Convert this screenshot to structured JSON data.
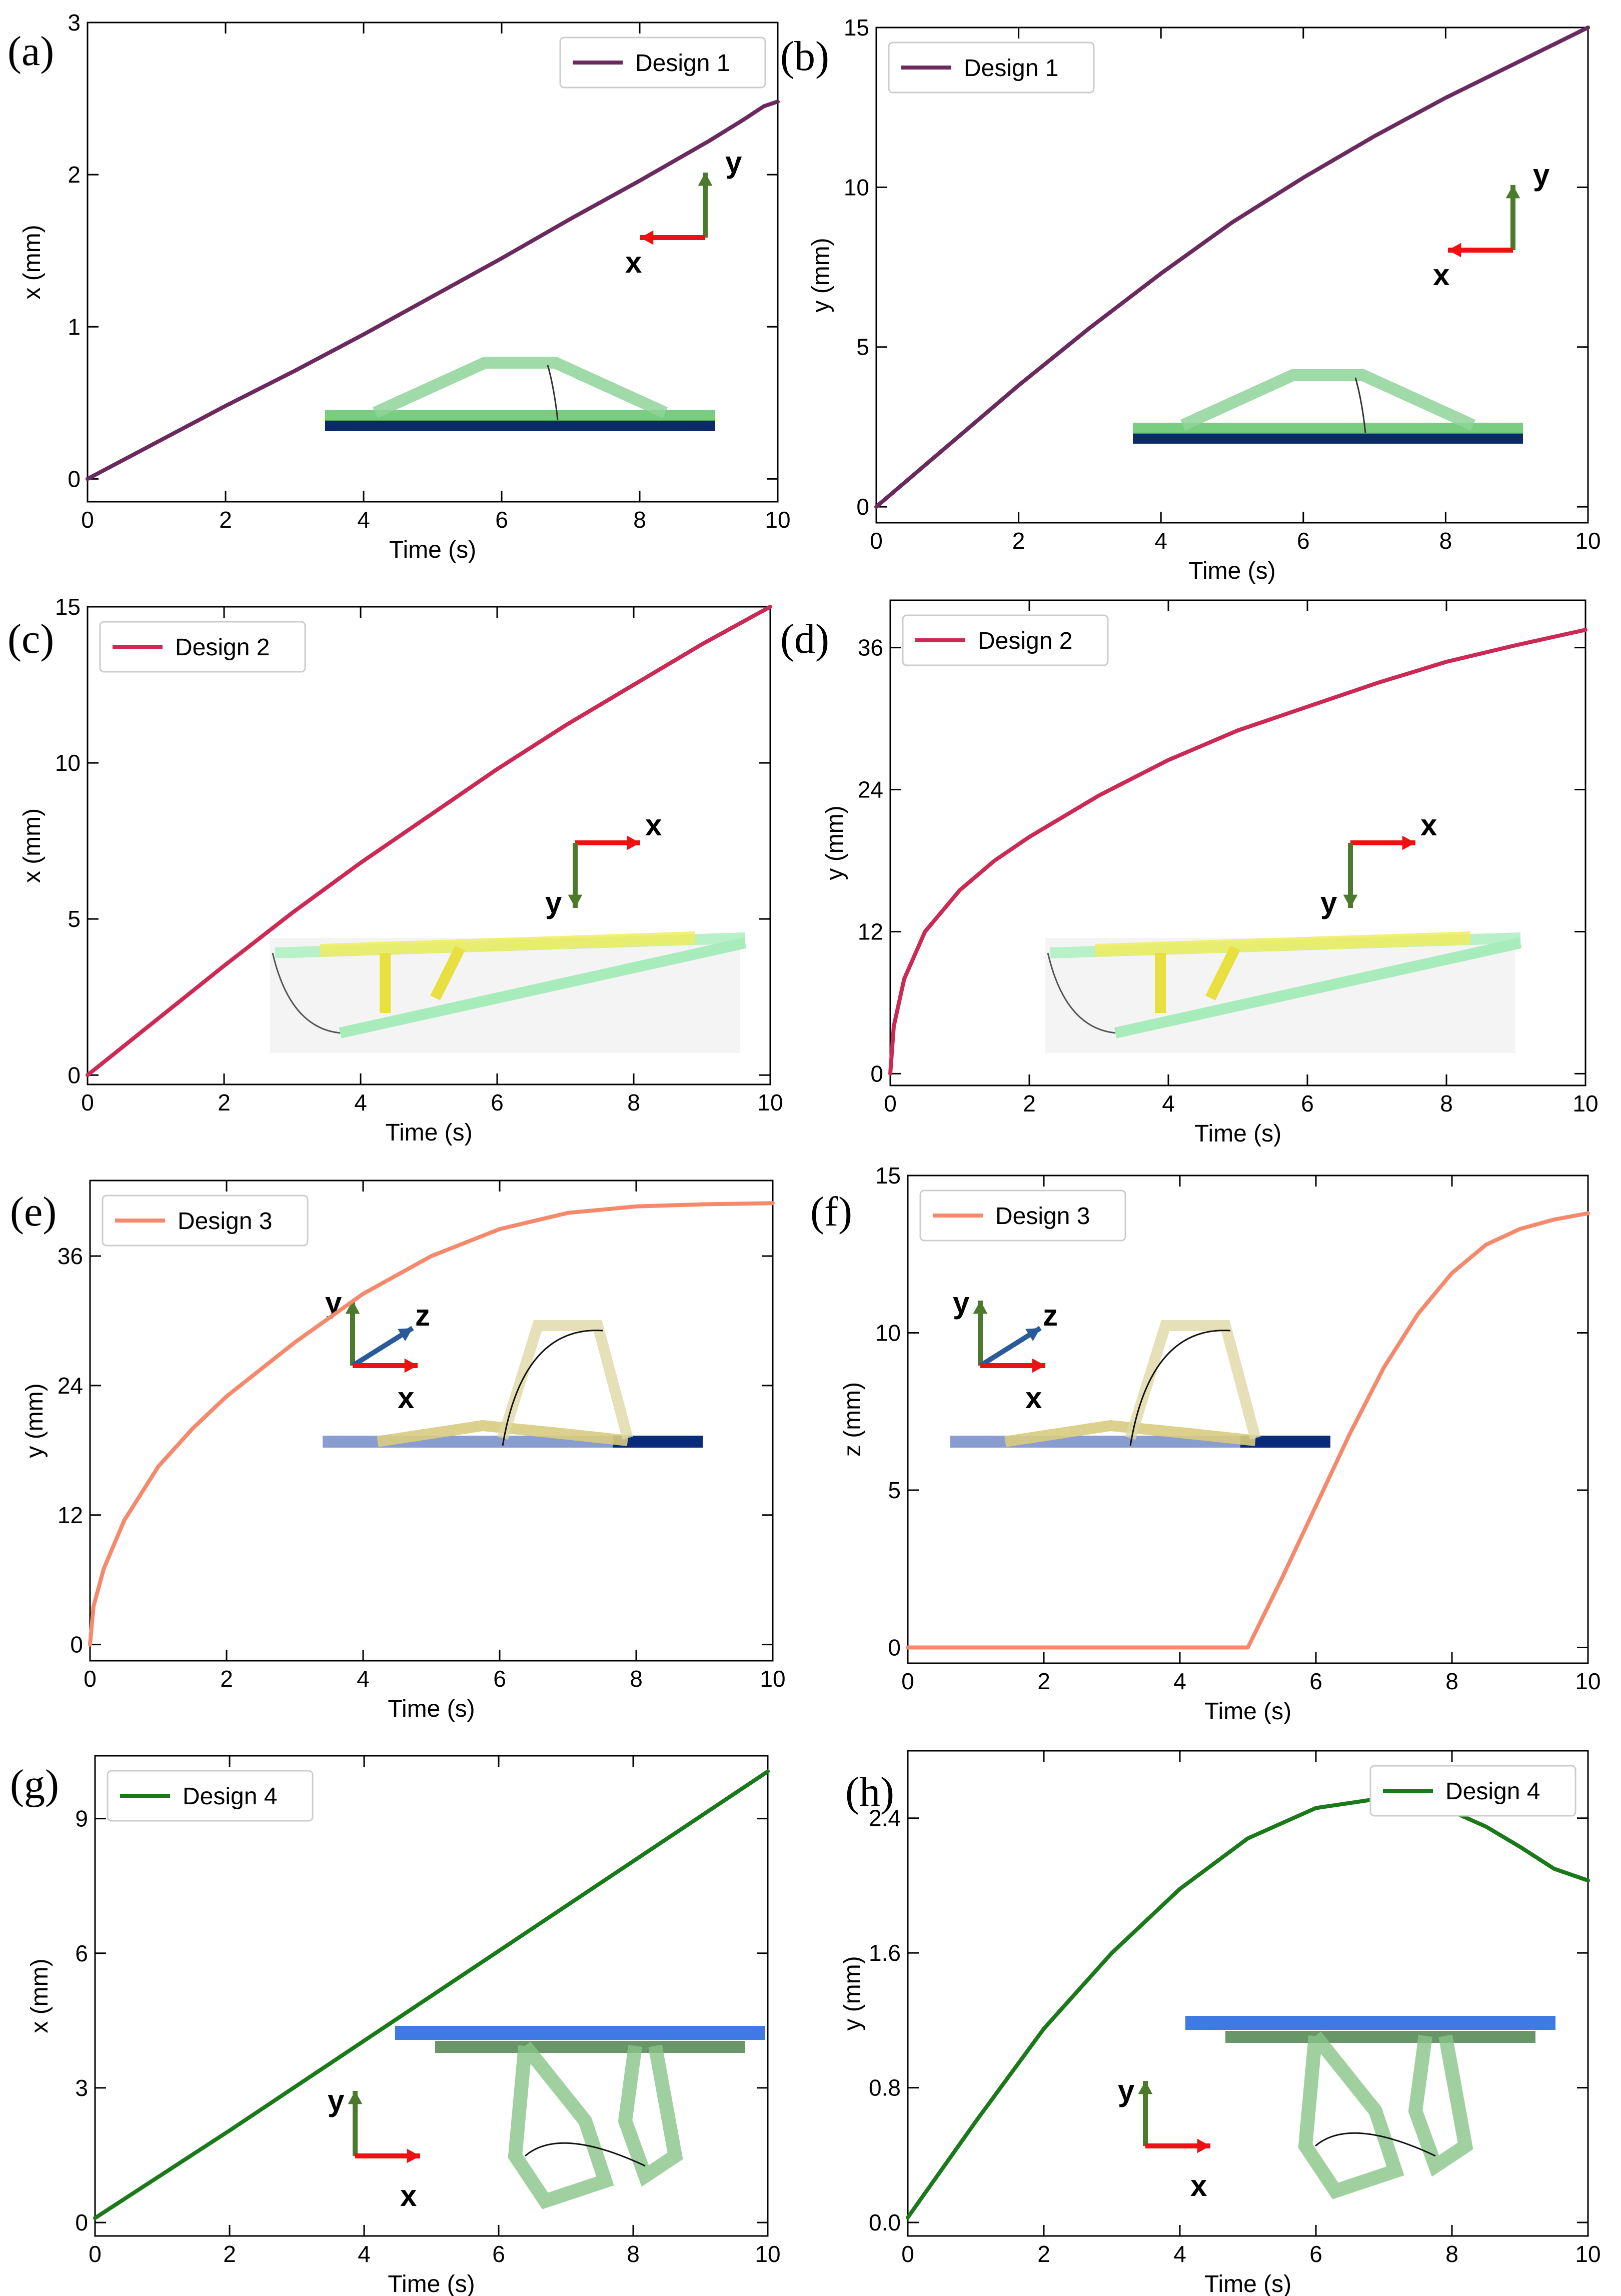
{
  "chart_data": [
    {
      "panel": "(a)",
      "type": "line",
      "xlabel": "Time (s)",
      "ylabel": "x (mm)",
      "xlim": [
        0,
        10
      ],
      "ylim": [
        -0.15,
        3
      ],
      "xticks": [
        0,
        2,
        4,
        6,
        8,
        10
      ],
      "yticks": [
        0,
        1,
        2,
        3
      ],
      "ytick_labels": [
        "0",
        "1",
        "2",
        "3"
      ],
      "legend_position": "top-right",
      "series": [
        {
          "name": "Design 1",
          "color": "#6b2a5e",
          "x": [
            0,
            1,
            2,
            3,
            4,
            5,
            6,
            7,
            8,
            9,
            9.5,
            9.8,
            10
          ],
          "y": [
            0,
            0.24,
            0.48,
            0.71,
            0.95,
            1.2,
            1.45,
            1.71,
            1.96,
            2.22,
            2.36,
            2.45,
            2.48
          ]
        }
      ],
      "inset": {
        "style": "design1",
        "arrows": [
          "y",
          "x"
        ],
        "labels": [
          "y",
          "x"
        ]
      }
    },
    {
      "panel": "(b)",
      "type": "line",
      "xlabel": "Time (s)",
      "ylabel": "y (mm)",
      "xlim": [
        0,
        10
      ],
      "ylim": [
        -0.5,
        15
      ],
      "xticks": [
        0,
        2,
        4,
        6,
        8,
        10
      ],
      "yticks": [
        0,
        5,
        10,
        15
      ],
      "ytick_labels": [
        "0",
        "5",
        "10",
        "15"
      ],
      "legend_position": "top-left",
      "series": [
        {
          "name": "Design 1",
          "color": "#6b2a5e",
          "x": [
            0,
            1,
            2,
            3,
            4,
            5,
            6,
            7,
            8,
            9,
            10
          ],
          "y": [
            0,
            1.9,
            3.8,
            5.6,
            7.3,
            8.9,
            10.3,
            11.6,
            12.8,
            13.9,
            15.0
          ]
        }
      ],
      "inset": {
        "style": "design1",
        "arrows": [
          "y",
          "x"
        ],
        "labels": [
          "y",
          "x"
        ]
      }
    },
    {
      "panel": "(c)",
      "type": "line",
      "xlabel": "Time (s)",
      "ylabel": "x (mm)",
      "xlim": [
        0,
        10
      ],
      "ylim": [
        -0.3,
        15
      ],
      "xticks": [
        0,
        2,
        4,
        6,
        8,
        10
      ],
      "yticks": [
        0,
        5,
        10,
        15
      ],
      "ytick_labels": [
        "0",
        "5",
        "10",
        "15"
      ],
      "legend_position": "top-left",
      "series": [
        {
          "name": "Design 2",
          "color": "#cc2a55",
          "x": [
            0,
            1,
            2,
            3,
            4,
            5,
            6,
            7,
            8,
            9,
            10
          ],
          "y": [
            0,
            1.75,
            3.5,
            5.2,
            6.8,
            8.3,
            9.8,
            11.2,
            12.5,
            13.8,
            15.0
          ]
        }
      ],
      "inset": {
        "style": "design2",
        "arrows": [
          "x",
          "y"
        ],
        "labels": [
          "x",
          "y"
        ]
      }
    },
    {
      "panel": "(d)",
      "type": "line",
      "xlabel": "Time (s)",
      "ylabel": "y (mm)",
      "xlim": [
        0,
        10
      ],
      "ylim": [
        -1,
        40
      ],
      "xticks": [
        0,
        2,
        4,
        6,
        8,
        10
      ],
      "yticks": [
        0,
        12,
        24,
        36
      ],
      "ytick_labels": [
        "0",
        "12",
        "24",
        "36"
      ],
      "legend_position": "top-left",
      "series": [
        {
          "name": "Design 2",
          "color": "#cc2a55",
          "x": [
            0,
            0.05,
            0.2,
            0.5,
            1,
            1.5,
            2,
            3,
            4,
            5,
            6,
            7,
            8,
            9,
            10
          ],
          "y": [
            0,
            4,
            8,
            12,
            15.5,
            18,
            20,
            23.5,
            26.5,
            29,
            31,
            33,
            34.8,
            36.2,
            37.5
          ]
        }
      ],
      "inset": {
        "style": "design2",
        "arrows": [
          "x",
          "y"
        ],
        "labels": [
          "x",
          "y"
        ]
      }
    },
    {
      "panel": "(e)",
      "type": "line",
      "xlabel": "Time (s)",
      "ylabel": "y (mm)",
      "xlim": [
        0,
        10
      ],
      "ylim": [
        -1.5,
        43
      ],
      "xticks": [
        0,
        2,
        4,
        6,
        8,
        10
      ],
      "yticks": [
        0,
        12,
        24,
        36
      ],
      "ytick_labels": [
        "0",
        "12",
        "24",
        "36"
      ],
      "legend_position": "top-left",
      "series": [
        {
          "name": "Design 3",
          "color": "#f4896b",
          "x": [
            0,
            0.05,
            0.2,
            0.5,
            1,
            1.5,
            2,
            3,
            4,
            5,
            6,
            7,
            8,
            9,
            10
          ],
          "y": [
            0,
            3.5,
            7,
            11.5,
            16.5,
            20,
            23,
            28,
            32.5,
            36,
            38.5,
            40,
            40.6,
            40.8,
            40.9
          ]
        }
      ],
      "inset": {
        "style": "design3",
        "arrows": [
          "y",
          "z",
          "x"
        ],
        "labels": [
          "y",
          "z",
          "x"
        ]
      }
    },
    {
      "panel": "(f)",
      "type": "line",
      "xlabel": "Time (s)",
      "ylabel": "z (mm)",
      "xlim": [
        0,
        10
      ],
      "ylim": [
        -0.5,
        15
      ],
      "xticks": [
        0,
        2,
        4,
        6,
        8,
        10
      ],
      "yticks": [
        0,
        5,
        10,
        15
      ],
      "ytick_labels": [
        "0",
        "5",
        "10",
        "15"
      ],
      "legend_position": "top-left",
      "series": [
        {
          "name": "Design 3",
          "color": "#f4896b",
          "x": [
            0,
            1,
            2,
            3,
            4,
            5,
            5.5,
            6,
            6.5,
            7,
            7.5,
            8,
            8.5,
            9,
            9.5,
            10
          ],
          "y": [
            0,
            0,
            0,
            0,
            0,
            0,
            2.2,
            4.5,
            6.8,
            8.9,
            10.6,
            11.9,
            12.8,
            13.3,
            13.6,
            13.8
          ]
        }
      ],
      "inset": {
        "style": "design3",
        "arrows": [
          "y",
          "z",
          "x"
        ],
        "labels": [
          "y",
          "z",
          "x"
        ]
      }
    },
    {
      "panel": "(g)",
      "type": "line",
      "xlabel": "Time (s)",
      "ylabel": "x (mm)",
      "xlim": [
        0,
        10
      ],
      "ylim": [
        -0.3,
        10.4
      ],
      "xticks": [
        0,
        2,
        4,
        6,
        8,
        10
      ],
      "yticks": [
        0,
        3,
        6,
        9
      ],
      "ytick_labels": [
        "0",
        "3",
        "6",
        "9"
      ],
      "legend_position": "top-left",
      "series": [
        {
          "name": "Design 4",
          "color": "#1a7a1a",
          "x": [
            0,
            2,
            4,
            6,
            8,
            10
          ],
          "y": [
            0.1,
            2.05,
            4.05,
            6.05,
            8.05,
            10.05
          ]
        }
      ],
      "inset": {
        "style": "design4",
        "arrows": [
          "y",
          "x"
        ],
        "labels": [
          "y",
          "x"
        ]
      }
    },
    {
      "panel": "(h)",
      "type": "line",
      "xlabel": "Time (s)",
      "ylabel": "y (mm)",
      "xlim": [
        0,
        10
      ],
      "ylim": [
        -0.08,
        2.8
      ],
      "xticks": [
        0,
        2,
        4,
        6,
        8,
        10
      ],
      "yticks": [
        0.0,
        0.8,
        1.6,
        2.4
      ],
      "ytick_labels": [
        "0.0",
        "0.8",
        "1.6",
        "2.4"
      ],
      "legend_position": "top-right",
      "series": [
        {
          "name": "Design 4",
          "color": "#1a7a1a",
          "x": [
            0,
            1,
            2,
            3,
            4,
            5,
            6,
            7,
            7.5,
            8,
            8.5,
            9,
            9.5,
            10
          ],
          "y": [
            0.03,
            0.6,
            1.15,
            1.6,
            1.98,
            2.28,
            2.46,
            2.52,
            2.5,
            2.44,
            2.35,
            2.23,
            2.1,
            2.03
          ]
        }
      ],
      "inset": {
        "style": "design4",
        "arrows": [
          "y",
          "x"
        ],
        "labels": [
          "y",
          "x"
        ]
      }
    }
  ]
}
